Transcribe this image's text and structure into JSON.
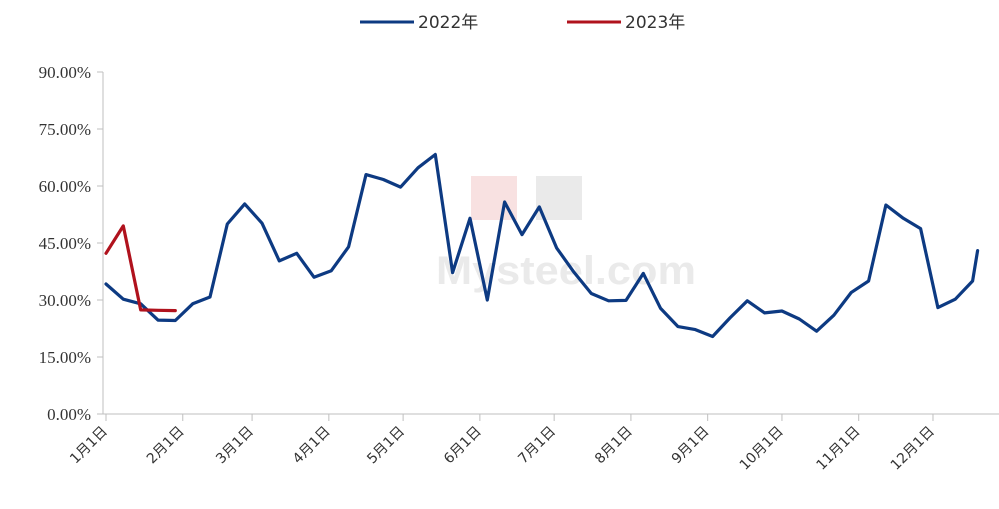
{
  "chart_data": {
    "type": "line",
    "title": "",
    "xlabel": "",
    "ylabel": "",
    "ylim": [
      0,
      90
    ],
    "y_ticks": [
      "0.00%",
      "15.00%",
      "30.00%",
      "45.00%",
      "60.00%",
      "75.00%",
      "90.00%"
    ],
    "x_ticks": [
      "1月1日",
      "2月1日",
      "3月1日",
      "4月1日",
      "5月1日",
      "6月1日",
      "7月1日",
      "8月1日",
      "9月1日",
      "10月1日",
      "11月1日",
      "12月1日"
    ],
    "x_tick_days": [
      1,
      32,
      60,
      91,
      121,
      152,
      182,
      213,
      244,
      274,
      305,
      335
    ],
    "grid": false,
    "legend_position": "top-center",
    "series": [
      {
        "name": "2022年",
        "color": "#0d3a82",
        "points": [
          [
            1,
            34.2
          ],
          [
            8,
            30.2
          ],
          [
            15,
            29.0
          ],
          [
            22,
            24.7
          ],
          [
            29,
            24.6
          ],
          [
            36,
            29.0
          ],
          [
            43,
            30.8
          ],
          [
            50,
            50.0
          ],
          [
            57,
            55.3
          ],
          [
            64,
            50.2
          ],
          [
            71,
            40.3
          ],
          [
            78,
            42.3
          ],
          [
            85,
            36.0
          ],
          [
            92,
            37.7
          ],
          [
            99,
            44.0
          ],
          [
            106,
            63.0
          ],
          [
            113,
            61.7
          ],
          [
            120,
            59.7
          ],
          [
            127,
            64.8
          ],
          [
            134,
            68.3
          ],
          [
            141,
            37.2
          ],
          [
            148,
            51.5
          ],
          [
            155,
            30.0
          ],
          [
            162,
            55.8
          ],
          [
            169,
            47.2
          ],
          [
            176,
            54.5
          ],
          [
            183,
            43.7
          ],
          [
            190,
            37.3
          ],
          [
            197,
            31.7
          ],
          [
            204,
            29.8
          ],
          [
            211,
            29.9
          ],
          [
            218,
            37.0
          ],
          [
            225,
            27.8
          ],
          [
            232,
            23.0
          ],
          [
            239,
            22.2
          ],
          [
            246,
            20.4
          ],
          [
            253,
            25.3
          ],
          [
            260,
            29.8
          ],
          [
            267,
            26.6
          ],
          [
            274,
            27.1
          ],
          [
            281,
            25.0
          ],
          [
            288,
            21.8
          ],
          [
            295,
            26.0
          ],
          [
            302,
            32.0
          ],
          [
            309,
            35.0
          ],
          [
            316,
            55.0
          ],
          [
            323,
            51.5
          ],
          [
            330,
            48.8
          ],
          [
            337,
            28.0
          ],
          [
            344,
            30.2
          ],
          [
            351,
            35.0
          ],
          [
            353,
            43.0
          ]
        ]
      },
      {
        "name": "2023年",
        "color": "#b0121d",
        "points": [
          [
            1,
            42.3
          ],
          [
            8,
            49.5
          ],
          [
            15,
            27.4
          ],
          [
            22,
            27.3
          ],
          [
            29,
            27.2
          ]
        ]
      }
    ]
  }
}
